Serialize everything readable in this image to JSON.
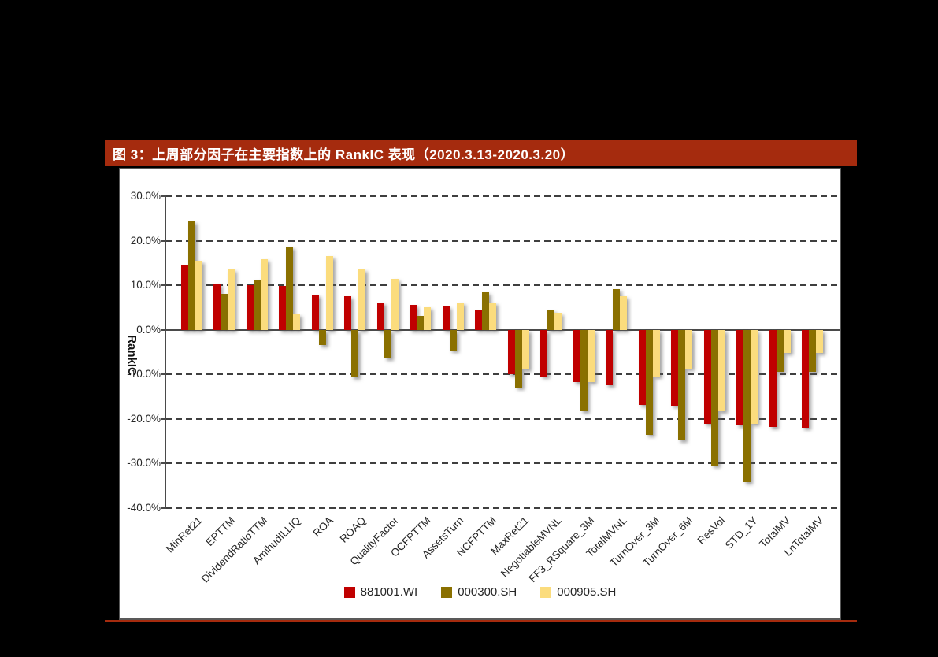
{
  "figure": {
    "title": "图 3：上周部分因子在主要指数上的 RankIC 表现（2020.3.13-2020.3.20）",
    "title_bar_color": "#A52B0E",
    "underline_color": "#A52B0E"
  },
  "chart_data": {
    "type": "bar",
    "title": "",
    "xlabel": "",
    "ylabel": "RankIC",
    "ylim": [
      -40,
      30
    ],
    "y_ticks": [
      "30.0%",
      "20.0%",
      "10.0%",
      "0.0%",
      "-10.0%",
      "-20.0%",
      "-30.0%",
      "-40.0%"
    ],
    "y_tick_values": [
      30,
      20,
      10,
      0,
      -10,
      -20,
      -30,
      -40
    ],
    "grid": "horizontal-dashed",
    "legend_position": "bottom-center",
    "categories": [
      "MinRet21",
      "EPTTM",
      "DividendRatioTTM",
      "AmihudILLIQ",
      "ROA",
      "ROAQ",
      "QualityFactor",
      "OCFPTTM",
      "AssetsTurn",
      "NCFPTTM",
      "MaxRet21",
      "NegotiableMVNL",
      "FF3_RSquare_3M",
      "TotalMVNL",
      "TurnOver_3M",
      "TurnOver_6M",
      "ResVol",
      "STD_1Y",
      "TotalMV",
      "LnTotalMV"
    ],
    "series": [
      {
        "name": "881001.WI",
        "color": "#C00000",
        "values": [
          14.4,
          10.3,
          10.0,
          9.9,
          7.9,
          7.5,
          6.1,
          5.6,
          5.2,
          4.3,
          -9.9,
          -10.4,
          -11.7,
          -12.4,
          -16.8,
          -17.0,
          -21.1,
          -21.5,
          -21.8,
          -22.0
        ]
      },
      {
        "name": "000300.SH",
        "color": "#8A7000",
        "values": [
          24.3,
          8.0,
          11.3,
          18.6,
          -3.4,
          -10.7,
          -6.4,
          3.2,
          -4.6,
          8.4,
          -12.9,
          4.3,
          -18.2,
          9.2,
          -23.5,
          -24.8,
          -30.5,
          -34.2,
          -9.5,
          -9.5
        ]
      },
      {
        "name": "000905.SH",
        "color": "#FBDC7D",
        "values": [
          15.5,
          13.6,
          15.9,
          3.4,
          16.6,
          13.6,
          11.4,
          5.0,
          6.2,
          6.1,
          -8.9,
          3.8,
          -11.8,
          7.6,
          -10.5,
          -8.7,
          -18.2,
          -21.1,
          -5.2,
          -5.2
        ]
      }
    ]
  }
}
